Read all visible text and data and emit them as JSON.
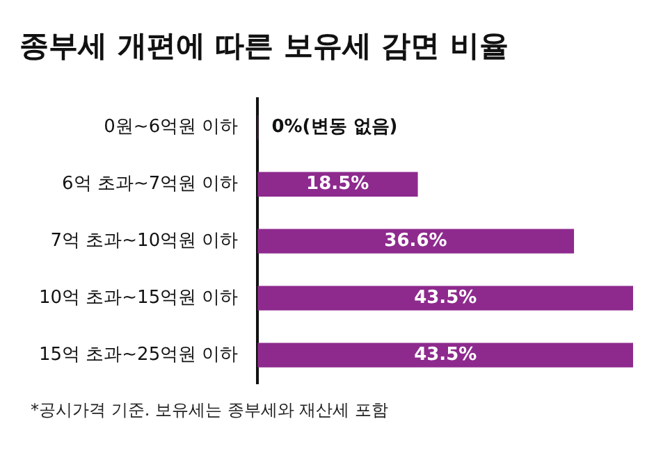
{
  "chart_data": {
    "type": "bar",
    "orientation": "horizontal",
    "title": "종부세 개편에 따른 보유세 감면 비율",
    "categories": [
      "0원~6억원 이하",
      "6억 초과~7억원 이하",
      "7억 초과~10억원 이하",
      "10억 초과~15억원 이하",
      "15억 초과~25억원 이하"
    ],
    "values": [
      0,
      18.5,
      36.6,
      43.5,
      43.5
    ],
    "value_labels": [
      "0%(변동 없음)",
      "18.5%",
      "36.6%",
      "43.5%",
      "43.5%"
    ],
    "color": "#8e2a8e",
    "xlim": [
      0,
      43.5
    ],
    "tick_labels": "y",
    "annotations": [
      "*공시가격 기준. 보유세는 종부세와 재산세 포함"
    ]
  }
}
